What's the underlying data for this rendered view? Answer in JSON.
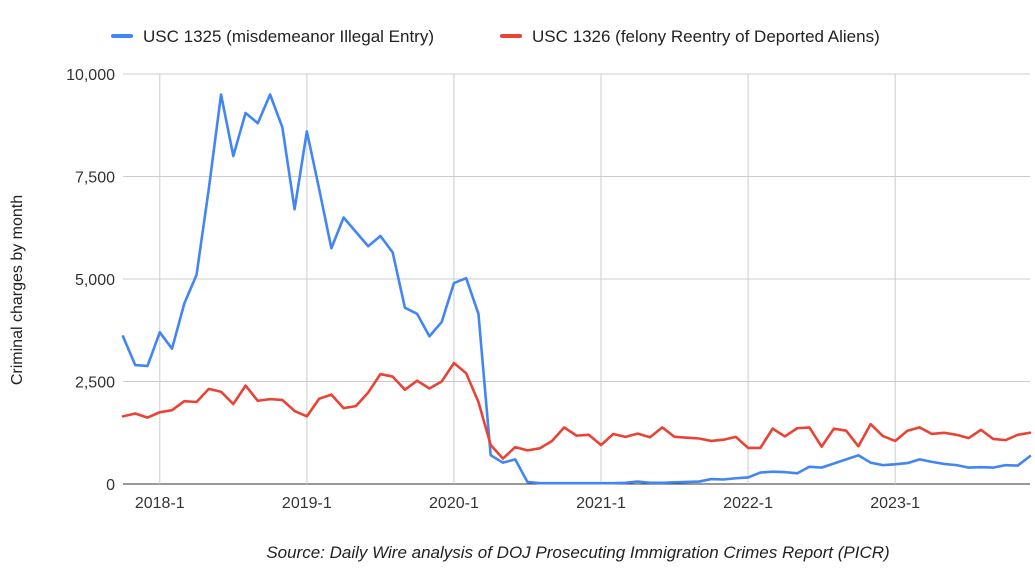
{
  "chart_data": {
    "type": "line",
    "title": "",
    "xlabel": "",
    "ylabel": "Criminal charges by month",
    "ylim": [
      0,
      10000
    ],
    "yticks": [
      0,
      2500,
      5000,
      7500,
      10000
    ],
    "ytick_labels": [
      "0",
      "2,500",
      "5,000",
      "7,500",
      "10,000"
    ],
    "xtick_labels": [
      "2018-1",
      "2019-1",
      "2020-1",
      "2021-1",
      "2022-1",
      "2023-1"
    ],
    "xtick_indices": [
      3,
      15,
      27,
      39,
      51,
      63
    ],
    "grid": "both",
    "legend_position": "top",
    "source": "Source: Daily Wire analysis of DOJ Prosecuting Immigration Crimes Report (PICR)",
    "x_start": "2017-10",
    "x": [
      "2017-10",
      "2017-11",
      "2017-12",
      "2018-01",
      "2018-02",
      "2018-03",
      "2018-04",
      "2018-05",
      "2018-06",
      "2018-07",
      "2018-08",
      "2018-09",
      "2018-10",
      "2018-11",
      "2018-12",
      "2019-01",
      "2019-02",
      "2019-03",
      "2019-04",
      "2019-05",
      "2019-06",
      "2019-07",
      "2019-08",
      "2019-09",
      "2019-10",
      "2019-11",
      "2019-12",
      "2020-01",
      "2020-02",
      "2020-03",
      "2020-04",
      "2020-05",
      "2020-06",
      "2020-07",
      "2020-08",
      "2020-09",
      "2020-10",
      "2020-11",
      "2020-12",
      "2021-01",
      "2021-02",
      "2021-03",
      "2021-04",
      "2021-05",
      "2021-06",
      "2021-07",
      "2021-08",
      "2021-09",
      "2021-10",
      "2021-11",
      "2021-12",
      "2022-01",
      "2022-02",
      "2022-03",
      "2022-04",
      "2022-05",
      "2022-06",
      "2022-07",
      "2022-08",
      "2022-09",
      "2022-10",
      "2022-11",
      "2022-12",
      "2023-01",
      "2023-02",
      "2023-03",
      "2023-04",
      "2023-05",
      "2023-06",
      "2023-07",
      "2023-08",
      "2023-09",
      "2023-10",
      "2023-11",
      "2023-12"
    ],
    "series": [
      {
        "name": "USC 1325 (misdemeanor Illegal Entry)",
        "color": "#4285f4",
        "values": [
          3600,
          2900,
          2880,
          3700,
          3300,
          4400,
          5100,
          7200,
          9500,
          8000,
          9050,
          8800,
          9500,
          8700,
          6700,
          8600,
          7200,
          5750,
          6500,
          6150,
          5800,
          6050,
          5650,
          4300,
          4150,
          3600,
          3950,
          4900,
          5020,
          4150,
          700,
          520,
          600,
          50,
          20,
          20,
          20,
          20,
          20,
          20,
          20,
          30,
          60,
          30,
          30,
          40,
          50,
          60,
          120,
          110,
          140,
          160,
          280,
          300,
          290,
          260,
          420,
          400,
          500,
          600,
          700,
          520,
          460,
          480,
          510,
          600,
          540,
          490,
          460,
          400,
          410,
          400,
          460,
          450,
          680
        ]
      },
      {
        "name": "USC 1326 (felony Reentry of Deported Aliens)",
        "color": "#ea4335",
        "values": [
          1650,
          1720,
          1620,
          1750,
          1800,
          2020,
          2000,
          2320,
          2250,
          1950,
          2400,
          2030,
          2070,
          2050,
          1780,
          1650,
          2080,
          2180,
          1850,
          1900,
          2230,
          2680,
          2620,
          2300,
          2520,
          2330,
          2500,
          2950,
          2700,
          2000,
          950,
          620,
          900,
          820,
          870,
          1050,
          1380,
          1180,
          1200,
          950,
          1220,
          1150,
          1230,
          1140,
          1380,
          1150,
          1130,
          1110,
          1050,
          1080,
          1150,
          880,
          880,
          1350,
          1160,
          1360,
          1380,
          910,
          1350,
          1300,
          920,
          1460,
          1170,
          1050,
          1300,
          1380,
          1220,
          1250,
          1200,
          1120,
          1320,
          1100,
          1070,
          1200,
          1250
        ]
      }
    ]
  }
}
